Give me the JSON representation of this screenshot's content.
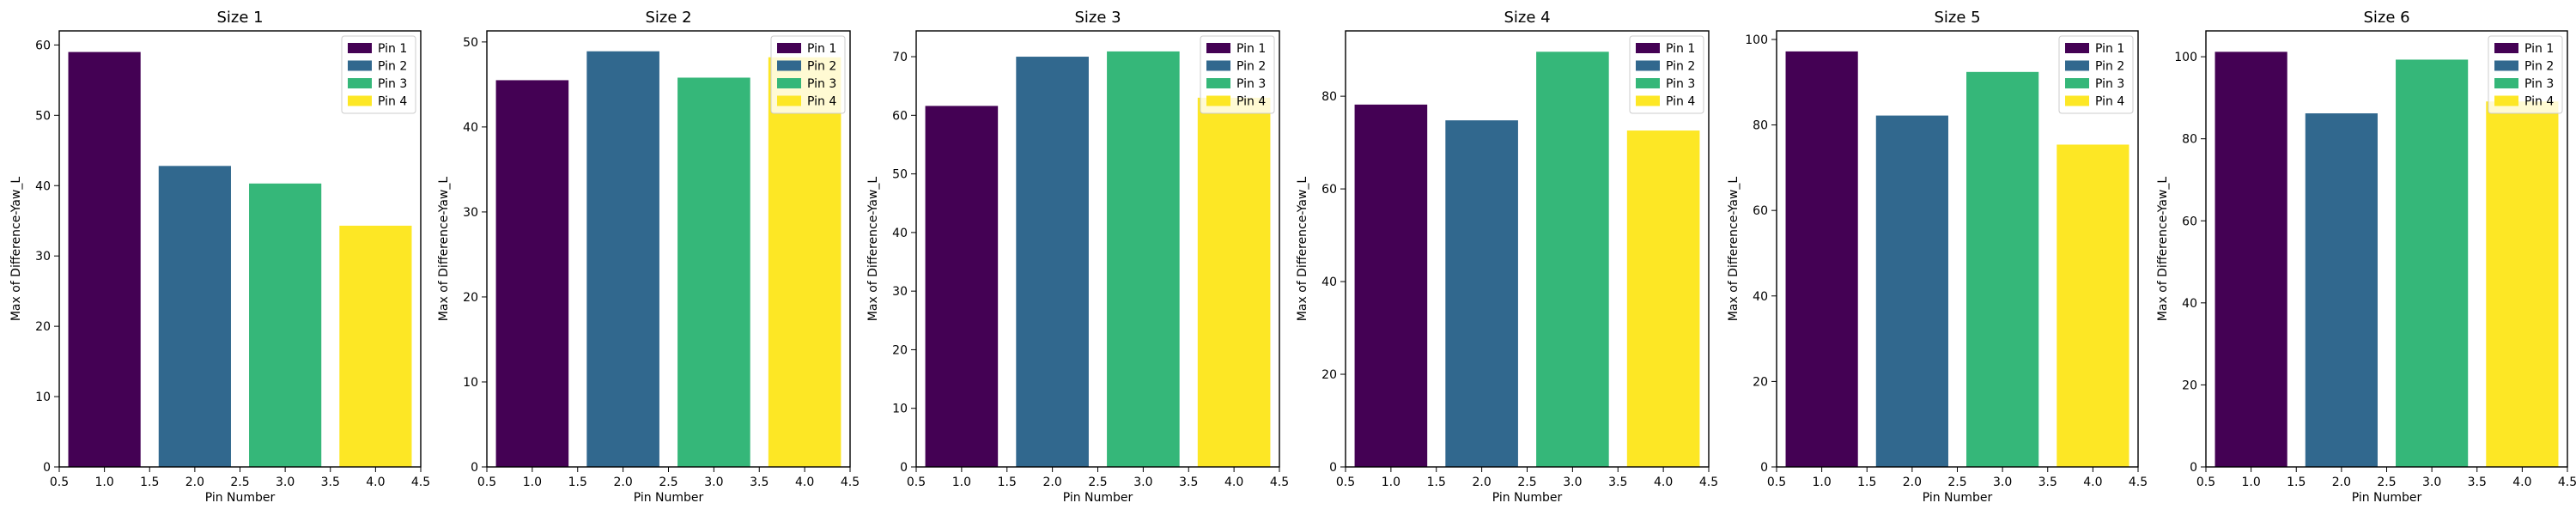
{
  "chart_data": [
    {
      "type": "bar",
      "title": "Size 1",
      "xlabel": "Pin Number",
      "ylabel": "Max of Difference-Yaw_L",
      "x": [
        1.0,
        2.0,
        3.0,
        4.0
      ],
      "values": [
        59.0,
        42.8,
        40.3,
        34.3
      ],
      "series_names": [
        "Pin 1",
        "Pin 2",
        "Pin 3",
        "Pin 4"
      ],
      "xlim": [
        0.5,
        4.5
      ],
      "ylim": [
        0,
        62
      ],
      "xticks": [
        "0.5",
        "1.0",
        "1.5",
        "2.0",
        "2.5",
        "3.0",
        "3.5",
        "4.0",
        "4.5"
      ],
      "yticks": [
        0,
        10,
        20,
        30,
        40,
        50,
        60
      ],
      "legend": "top-right"
    },
    {
      "type": "bar",
      "title": "Size 2",
      "xlabel": "Pin Number",
      "ylabel": "Max of Difference-Yaw_L",
      "x": [
        1.0,
        2.0,
        3.0,
        4.0
      ],
      "values": [
        45.5,
        48.9,
        45.8,
        48.2
      ],
      "series_names": [
        "Pin 1",
        "Pin 2",
        "Pin 3",
        "Pin 4"
      ],
      "xlim": [
        0.5,
        4.5
      ],
      "ylim": [
        0,
        51.3
      ],
      "xticks": [
        "0.5",
        "1.0",
        "1.5",
        "2.0",
        "2.5",
        "3.0",
        "3.5",
        "4.0",
        "4.5"
      ],
      "yticks": [
        0,
        10,
        20,
        30,
        40,
        50
      ],
      "legend": "top-right"
    },
    {
      "type": "bar",
      "title": "Size 3",
      "xlabel": "Pin Number",
      "ylabel": "Max of Difference-Yaw_L",
      "x": [
        1.0,
        2.0,
        3.0,
        4.0
      ],
      "values": [
        61.6,
        70.0,
        70.9,
        63.0
      ],
      "series_names": [
        "Pin 1",
        "Pin 2",
        "Pin 3",
        "Pin 4"
      ],
      "xlim": [
        0.5,
        4.5
      ],
      "ylim": [
        0,
        74.4
      ],
      "xticks": [
        "0.5",
        "1.0",
        "1.5",
        "2.0",
        "2.5",
        "3.0",
        "3.5",
        "4.0",
        "4.5"
      ],
      "yticks": [
        0,
        10,
        20,
        30,
        40,
        50,
        60,
        70
      ],
      "legend": "top-right"
    },
    {
      "type": "bar",
      "title": "Size 4",
      "xlabel": "Pin Number",
      "ylabel": "Max of Difference-Yaw_L",
      "x": [
        1.0,
        2.0,
        3.0,
        4.0
      ],
      "values": [
        78.2,
        74.8,
        89.6,
        72.6
      ],
      "series_names": [
        "Pin 1",
        "Pin 2",
        "Pin 3",
        "Pin 4"
      ],
      "xlim": [
        0.5,
        4.5
      ],
      "ylim": [
        0,
        94.1
      ],
      "xticks": [
        "0.5",
        "1.0",
        "1.5",
        "2.0",
        "2.5",
        "3.0",
        "3.5",
        "4.0",
        "4.5"
      ],
      "yticks": [
        0,
        20,
        40,
        60,
        80
      ],
      "legend": "top-right"
    },
    {
      "type": "bar",
      "title": "Size 5",
      "xlabel": "Pin Number",
      "ylabel": "Max of Difference-Yaw_L",
      "x": [
        1.0,
        2.0,
        3.0,
        4.0
      ],
      "values": [
        97.2,
        82.2,
        92.4,
        75.4
      ],
      "series_names": [
        "Pin 1",
        "Pin 2",
        "Pin 3",
        "Pin 4"
      ],
      "xlim": [
        0.5,
        4.5
      ],
      "ylim": [
        0,
        102
      ],
      "xticks": [
        "0.5",
        "1.0",
        "1.5",
        "2.0",
        "2.5",
        "3.0",
        "3.5",
        "4.0",
        "4.5"
      ],
      "yticks": [
        0,
        20,
        40,
        60,
        80,
        100
      ],
      "legend": "top-right"
    },
    {
      "type": "bar",
      "title": "Size 6",
      "xlabel": "Pin Number",
      "ylabel": "Max of Difference-Yaw_L",
      "x": [
        1.0,
        2.0,
        3.0,
        4.0
      ],
      "values": [
        101.2,
        86.2,
        99.3,
        89.1
      ],
      "series_names": [
        "Pin 1",
        "Pin 2",
        "Pin 3",
        "Pin 4"
      ],
      "xlim": [
        0.5,
        4.5
      ],
      "ylim": [
        0,
        106.3
      ],
      "xticks": [
        "0.5",
        "1.0",
        "1.5",
        "2.0",
        "2.5",
        "3.0",
        "3.5",
        "4.0",
        "4.5"
      ],
      "yticks": [
        0,
        20,
        40,
        60,
        80,
        100
      ],
      "legend": "top-right"
    }
  ],
  "colors": [
    "#440154",
    "#31688e",
    "#35b779",
    "#fde725"
  ]
}
